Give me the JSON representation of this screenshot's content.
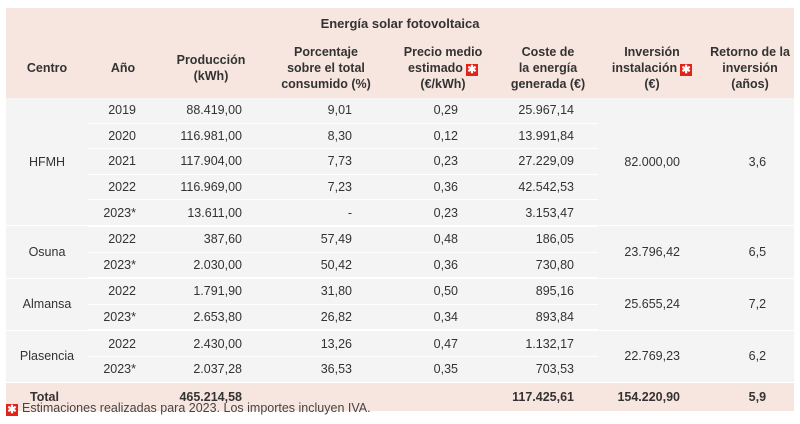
{
  "title": "Energía solar fotovoltaica",
  "headers": {
    "centro": "Centro",
    "anio": "Año",
    "produccion": [
      "Producción",
      "(kWh)"
    ],
    "porcentaje": [
      "Porcentaje",
      "sobre el total",
      "consumido (%)"
    ],
    "precio": [
      "Precio medio",
      "estimado",
      "(€/kWh)"
    ],
    "coste": [
      "Coste de",
      "la energía",
      "generada (€)"
    ],
    "inversion": [
      "Inversión",
      "instalación",
      "(€)"
    ],
    "retorno": [
      "Retorno de la",
      "inversión (años)"
    ]
  },
  "star_glyph": "✱",
  "groups": [
    {
      "centro": "HFMH",
      "inversion": "82.000,00",
      "retorno": "3,6",
      "rows": [
        {
          "anio": "2019",
          "produccion": "88.419,00",
          "porcentaje": "9,01",
          "precio": "0,29",
          "coste": "25.967,14"
        },
        {
          "anio": "2020",
          "produccion": "116.981,00",
          "porcentaje": "8,30",
          "precio": "0,12",
          "coste": "13.991,84"
        },
        {
          "anio": "2021",
          "produccion": "117.904,00",
          "porcentaje": "7,73",
          "precio": "0,23",
          "coste": "27.229,09"
        },
        {
          "anio": "2022",
          "produccion": "116.969,00",
          "porcentaje": "7,23",
          "precio": "0,36",
          "coste": "42.542,53"
        },
        {
          "anio": "2023*",
          "produccion": "13.611,00",
          "porcentaje": "-",
          "precio": "0,23",
          "coste": "3.153,47"
        }
      ]
    },
    {
      "centro": "Osuna",
      "inversion": "23.796,42",
      "retorno": "6,5",
      "rows": [
        {
          "anio": "2022",
          "produccion": "387,60",
          "porcentaje": "57,49",
          "precio": "0,48",
          "coste": "186,05"
        },
        {
          "anio": "2023*",
          "produccion": "2.030,00",
          "porcentaje": "50,42",
          "precio": "0,36",
          "coste": "730,80"
        }
      ]
    },
    {
      "centro": "Almansa",
      "inversion": "25.655,24",
      "retorno": "7,2",
      "rows": [
        {
          "anio": "2022",
          "produccion": "1.791,90",
          "porcentaje": "31,80",
          "precio": "0,50",
          "coste": "895,16"
        },
        {
          "anio": "2023*",
          "produccion": "2.653,80",
          "porcentaje": "26,82",
          "precio": "0,34",
          "coste": "893,84"
        }
      ]
    },
    {
      "centro": "Plasencia",
      "inversion": "22.769,23",
      "retorno": "6,2",
      "rows": [
        {
          "anio": "2022",
          "produccion": "2.430,00",
          "porcentaje": "13,26",
          "precio": "0,47",
          "coste": "1.132,17"
        },
        {
          "anio": "2023*",
          "produccion": "2.037,28",
          "porcentaje": "36,53",
          "precio": "0,35",
          "coste": "703,53"
        }
      ]
    }
  ],
  "total": {
    "label": "Total",
    "produccion": "465.214,58",
    "coste": "117.425,61",
    "inversion": "154.220,90",
    "retorno": "5,9"
  },
  "footnote": "Estimaciones realizadas para 2023. Los importes incluyen IVA.",
  "colors": {
    "header_bg": "#f7e6df",
    "row_bg": "#f4f4f4",
    "star_red": "#e2231a"
  }
}
